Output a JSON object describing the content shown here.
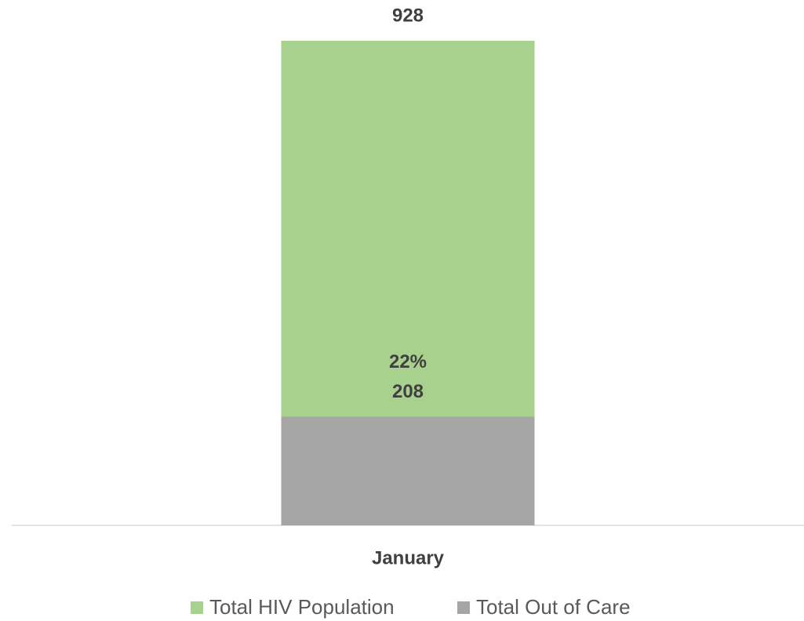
{
  "chart_data": {
    "type": "bar",
    "categories": [
      "January"
    ],
    "series": [
      {
        "name": "Total HIV Population",
        "color": "#a9d18e",
        "values": [
          928
        ]
      },
      {
        "name": "Total Out of Care",
        "color": "#a5a5a5",
        "values": [
          208
        ],
        "share_labels": [
          "22%"
        ]
      }
    ],
    "ylim": [
      0,
      1000
    ],
    "grid": false,
    "legend": "bottom"
  }
}
